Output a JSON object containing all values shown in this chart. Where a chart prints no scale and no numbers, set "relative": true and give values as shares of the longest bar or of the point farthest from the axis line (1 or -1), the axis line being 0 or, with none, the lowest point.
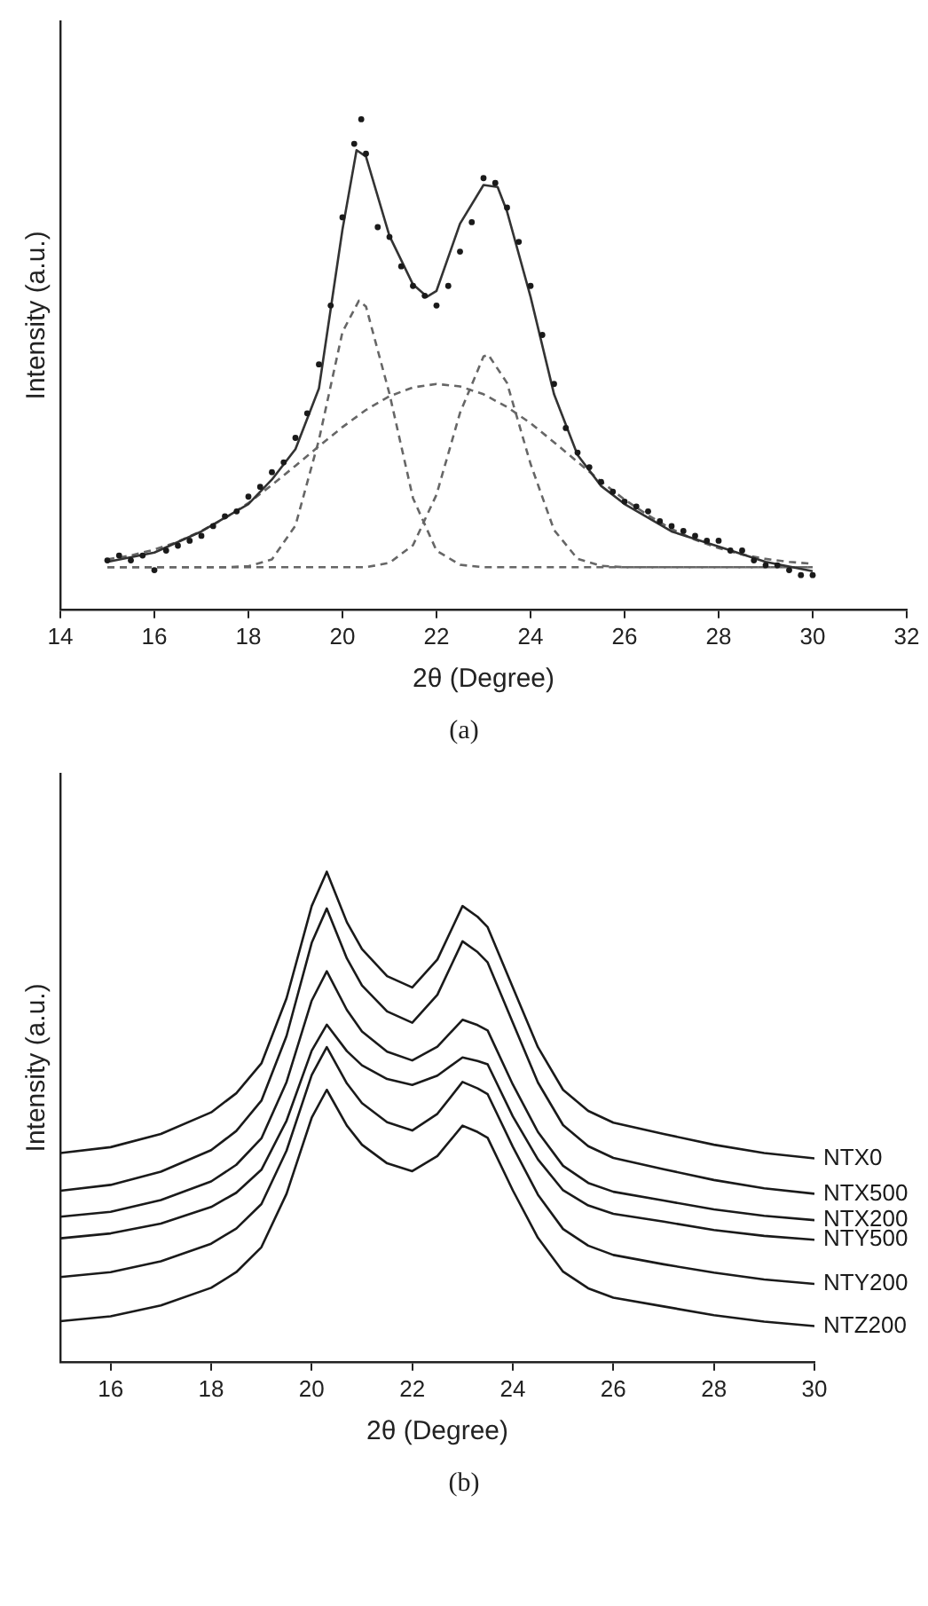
{
  "chart_data": [
    {
      "type": "line",
      "xlabel": "2θ (Degree)",
      "ylabel": "Intensity (a.u.)",
      "annotations": [
        "(a)"
      ],
      "relative": true,
      "xlim": [
        14,
        32
      ],
      "xticks": [
        14,
        16,
        18,
        20,
        22,
        24,
        26,
        28,
        30,
        32
      ],
      "grid": false,
      "series": [
        {
          "type": "scatter",
          "marker": "circle",
          "color": "#1a1a1a",
          "x": [
            15,
            15.25,
            15.5,
            15.75,
            16,
            16.25,
            16.5,
            16.75,
            17,
            17.25,
            17.5,
            17.75,
            18,
            18.25,
            18.5,
            18.75,
            19,
            19.25,
            19.5,
            19.75,
            20,
            20.25,
            20.4,
            20.5,
            20.75,
            21,
            21.25,
            21.5,
            21.75,
            22,
            22.25,
            22.5,
            22.75,
            23,
            23.25,
            23.5,
            23.75,
            24,
            24.25,
            24.5,
            24.75,
            25,
            25.25,
            25.5,
            25.75,
            26,
            26.25,
            26.5,
            26.75,
            27,
            27.25,
            27.5,
            27.75,
            28,
            28.25,
            28.5,
            28.75,
            29,
            29.25,
            29.5,
            29.75,
            30
          ],
          "values": [
            0.1,
            0.11,
            0.1,
            0.11,
            0.08,
            0.12,
            0.13,
            0.14,
            0.15,
            0.17,
            0.19,
            0.2,
            0.23,
            0.25,
            0.28,
            0.3,
            0.35,
            0.4,
            0.5,
            0.62,
            0.8,
            0.95,
            1.0,
            0.93,
            0.78,
            0.76,
            0.7,
            0.66,
            0.64,
            0.62,
            0.66,
            0.73,
            0.79,
            0.88,
            0.87,
            0.82,
            0.75,
            0.66,
            0.56,
            0.46,
            0.37,
            0.32,
            0.29,
            0.26,
            0.24,
            0.22,
            0.21,
            0.2,
            0.18,
            0.17,
            0.16,
            0.15,
            0.14,
            0.14,
            0.12,
            0.12,
            0.1,
            0.09,
            0.09,
            0.08,
            0.07,
            0.07
          ]
        },
        {
          "type": "line",
          "marker": "none",
          "line_style": "solid",
          "color": "#333333",
          "x": [
            15,
            16,
            17,
            18,
            18.5,
            19,
            19.5,
            20,
            20.3,
            20.5,
            21,
            21.5,
            21.8,
            22,
            22.5,
            23,
            23.3,
            23.5,
            24,
            24.5,
            25,
            25.5,
            26,
            27,
            28,
            29,
            30
          ],
          "values": [
            0.097,
            0.116,
            0.159,
            0.215,
            0.265,
            0.327,
            0.451,
            0.775,
            0.937,
            0.924,
            0.762,
            0.663,
            0.638,
            0.65,
            0.787,
            0.866,
            0.862,
            0.812,
            0.638,
            0.439,
            0.315,
            0.252,
            0.215,
            0.159,
            0.128,
            0.097,
            0.078
          ]
        },
        {
          "type": "line",
          "marker": "none",
          "line_style": "dashed",
          "color": "#666666",
          "x": [
            15,
            15.5,
            16,
            16.5,
            17,
            17.5,
            18,
            18.5,
            19,
            19.5,
            20,
            20.35,
            20.5,
            21,
            21.5,
            22,
            22.5,
            23,
            23.5,
            24,
            24.5,
            25,
            25.5,
            26,
            26.5,
            27,
            27.5,
            28,
            28.5,
            29,
            29.5,
            30
          ],
          "values": [
            0.086,
            0.086,
            0.086,
            0.086,
            0.086,
            0.086,
            0.088,
            0.102,
            0.171,
            0.346,
            0.566,
            0.63,
            0.618,
            0.44,
            0.227,
            0.12,
            0.091,
            0.086,
            0.086,
            0.086,
            0.086,
            0.086,
            0.086,
            0.086,
            0.086,
            0.086,
            0.086,
            0.086,
            0.086,
            0.086,
            0.086,
            0.086
          ]
        },
        {
          "type": "line",
          "marker": "none",
          "line_style": "dashed",
          "color": "#666666",
          "x": [
            15,
            15.5,
            16,
            16.5,
            17,
            17.5,
            18,
            18.5,
            19,
            19.5,
            20,
            20.5,
            21,
            21.5,
            22,
            22.5,
            23,
            23.1,
            23.5,
            24,
            24.5,
            25,
            25.5,
            26,
            26.5,
            27,
            27.5,
            28,
            28.5,
            29,
            29.5,
            30
          ],
          "values": [
            0.086,
            0.086,
            0.086,
            0.086,
            0.086,
            0.086,
            0.086,
            0.086,
            0.086,
            0.086,
            0.086,
            0.086,
            0.095,
            0.131,
            0.234,
            0.401,
            0.516,
            0.52,
            0.462,
            0.297,
            0.162,
            0.103,
            0.089,
            0.086,
            0.086,
            0.086,
            0.086,
            0.086,
            0.086,
            0.086,
            0.086,
            0.086
          ]
        },
        {
          "type": "line",
          "marker": "none",
          "line_style": "dashed",
          "color": "#666666",
          "x": [
            15,
            15.5,
            16,
            16.5,
            17,
            17.5,
            18,
            18.5,
            19,
            19.5,
            20,
            20.5,
            21,
            21.5,
            22,
            22.5,
            23,
            23.5,
            24,
            24.5,
            25,
            25.5,
            26,
            26.5,
            27,
            27.5,
            28,
            28.5,
            29,
            29.5,
            30
          ],
          "values": [
            0.102,
            0.11,
            0.122,
            0.138,
            0.16,
            0.186,
            0.217,
            0.254,
            0.293,
            0.333,
            0.372,
            0.407,
            0.435,
            0.453,
            0.46,
            0.455,
            0.439,
            0.413,
            0.38,
            0.341,
            0.301,
            0.261,
            0.224,
            0.192,
            0.164,
            0.142,
            0.125,
            0.112,
            0.103,
            0.097,
            0.093
          ]
        }
      ]
    },
    {
      "type": "line",
      "xlabel": "2θ (Degree)",
      "ylabel": "Intensity (a.u.)",
      "annotations": [
        "(b)"
      ],
      "relative": true,
      "xlim": [
        15,
        30
      ],
      "xticks": [
        16,
        18,
        20,
        22,
        24,
        26,
        28,
        30
      ],
      "grid": false,
      "x": [
        15,
        16,
        17,
        18,
        18.5,
        19,
        19.5,
        20,
        20.3,
        20.7,
        21,
        21.5,
        22,
        22.5,
        23,
        23.3,
        23.5,
        24,
        24.5,
        25,
        25.5,
        26,
        27,
        28,
        29,
        30
      ],
      "series": [
        {
          "name": "NTX0",
          "color": "#1a1a1a",
          "values": [
            0.426,
            0.438,
            0.465,
            0.509,
            0.548,
            0.609,
            0.742,
            0.93,
            1.0,
            0.897,
            0.842,
            0.787,
            0.764,
            0.821,
            0.93,
            0.908,
            0.887,
            0.764,
            0.642,
            0.555,
            0.512,
            0.488,
            0.465,
            0.443,
            0.426,
            0.415
          ]
        },
        {
          "name": "NTX500",
          "color": "#1a1a1a",
          "values": [
            0.349,
            0.361,
            0.388,
            0.432,
            0.471,
            0.533,
            0.665,
            0.855,
            0.925,
            0.823,
            0.768,
            0.715,
            0.692,
            0.749,
            0.858,
            0.836,
            0.815,
            0.692,
            0.57,
            0.483,
            0.44,
            0.416,
            0.393,
            0.371,
            0.354,
            0.343
          ]
        },
        {
          "name": "NTX200",
          "color": "#1a1a1a",
          "values": [
            0.296,
            0.306,
            0.33,
            0.368,
            0.402,
            0.456,
            0.571,
            0.737,
            0.797,
            0.718,
            0.674,
            0.633,
            0.615,
            0.643,
            0.698,
            0.687,
            0.676,
            0.566,
            0.469,
            0.4,
            0.365,
            0.347,
            0.329,
            0.311,
            0.298,
            0.289
          ]
        },
        {
          "name": "NTY500",
          "color": "#1a1a1a",
          "values": [
            0.252,
            0.262,
            0.282,
            0.316,
            0.345,
            0.392,
            0.492,
            0.635,
            0.688,
            0.634,
            0.605,
            0.577,
            0.565,
            0.584,
            0.621,
            0.614,
            0.607,
            0.501,
            0.413,
            0.35,
            0.319,
            0.302,
            0.286,
            0.269,
            0.257,
            0.249
          ]
        },
        {
          "name": "NTY200",
          "color": "#1a1a1a",
          "values": [
            0.173,
            0.183,
            0.205,
            0.241,
            0.272,
            0.322,
            0.431,
            0.585,
            0.642,
            0.568,
            0.528,
            0.489,
            0.472,
            0.506,
            0.571,
            0.558,
            0.546,
            0.439,
            0.341,
            0.271,
            0.237,
            0.218,
            0.199,
            0.182,
            0.168,
            0.159
          ]
        },
        {
          "name": "NTZ200",
          "color": "#1a1a1a",
          "values": [
            0.083,
            0.093,
            0.115,
            0.151,
            0.183,
            0.234,
            0.343,
            0.498,
            0.555,
            0.482,
            0.443,
            0.405,
            0.389,
            0.42,
            0.482,
            0.469,
            0.457,
            0.35,
            0.253,
            0.184,
            0.15,
            0.131,
            0.113,
            0.095,
            0.082,
            0.073
          ]
        }
      ]
    }
  ]
}
